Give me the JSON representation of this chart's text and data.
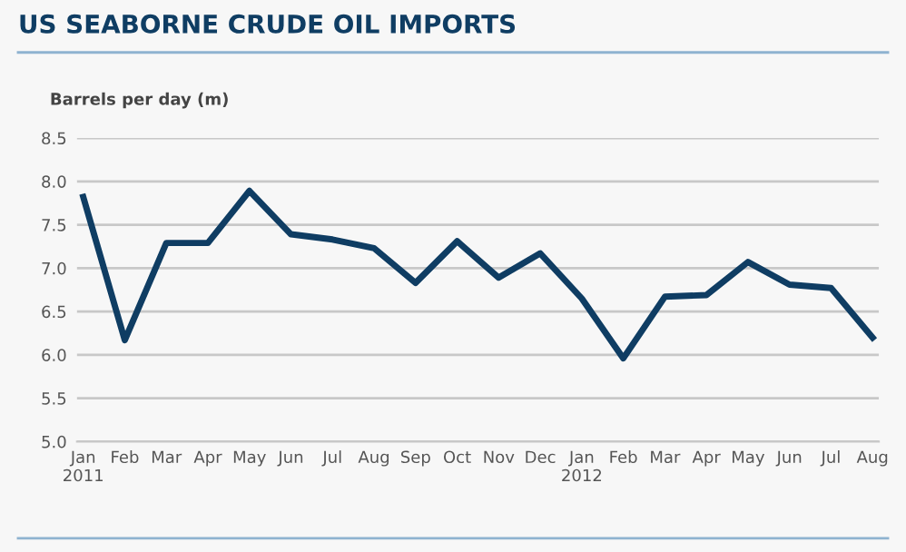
{
  "chart_data": {
    "type": "line",
    "title": "US SEABORNE CRUDE OIL IMPORTS",
    "ylabel": "Barrels per day (m)",
    "categories": [
      "Jan\n2011",
      "Feb",
      "Mar",
      "Apr",
      "May",
      "Jun",
      "Jul",
      "Aug",
      "Sep",
      "Oct",
      "Nov",
      "Dec",
      "Jan\n2012",
      "Feb",
      "Mar",
      "Apr",
      "May",
      "Jun",
      "Jul",
      "Aug"
    ],
    "series": [
      {
        "color": "#0f3d63",
        "values": [
          7.82,
          6.17,
          7.29,
          7.29,
          7.89,
          7.39,
          7.33,
          7.23,
          6.83,
          7.31,
          6.89,
          7.17,
          6.65,
          5.96,
          6.67,
          6.69,
          7.07,
          6.81,
          6.77,
          6.2
        ]
      }
    ],
    "ylim": [
      5.0,
      8.5
    ],
    "yticks": [
      {
        "value": 5.0,
        "label": "5.0"
      },
      {
        "value": 5.5,
        "label": "5.5"
      },
      {
        "value": 6.0,
        "label": "6.0"
      },
      {
        "value": 6.5,
        "label": "6.5"
      },
      {
        "value": 7.0,
        "label": "7.0"
      },
      {
        "value": 7.5,
        "label": "7.5"
      },
      {
        "value": 8.0,
        "label": "8.0"
      },
      {
        "value": 8.5,
        "label": "8.5"
      }
    ],
    "grid": "y",
    "marker": "none",
    "line_style": "solid",
    "legend": false
  }
}
